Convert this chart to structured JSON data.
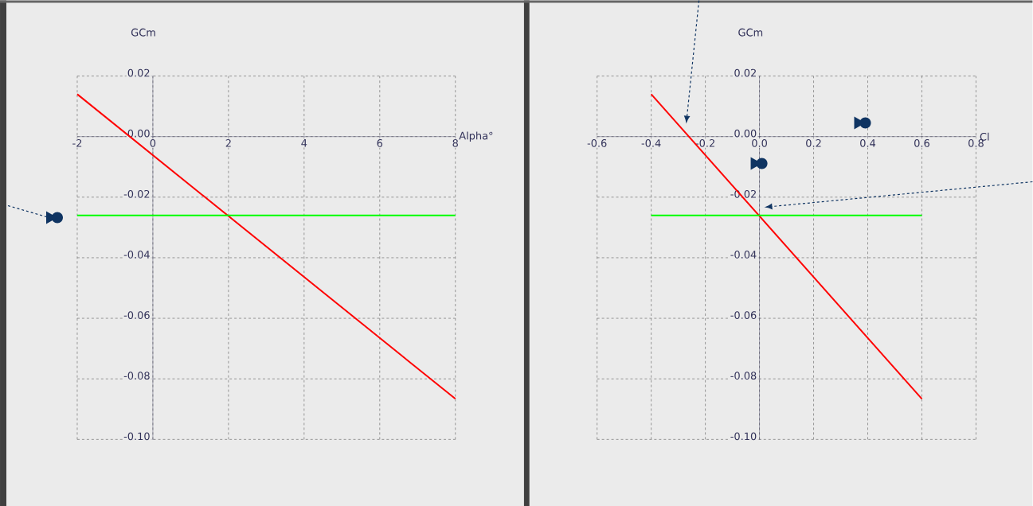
{
  "chart_data": [
    {
      "type": "line",
      "xlabel": "Alpha°",
      "ylabel": "GCm",
      "x": [
        -2,
        8
      ],
      "grid": true,
      "series": [
        {
          "color": "#ff0000",
          "values": [
            0.014,
            -0.0866
          ]
        },
        {
          "color": "#00ff00",
          "values": [
            -0.026,
            -0.026
          ]
        }
      ],
      "xlim": [
        -2,
        8
      ],
      "ylim": [
        -0.1,
        0.02
      ],
      "xticks": [
        -2,
        0,
        2,
        4,
        6,
        8
      ],
      "yticks": [
        {
          "value": 0.02,
          "label": "0.02"
        },
        {
          "value": 0,
          "label": "0.00"
        },
        {
          "value": -0.02,
          "label": "-0.02"
        },
        {
          "value": -0.04,
          "label": "-0.04"
        },
        {
          "value": -0.06,
          "label": "-0.06"
        },
        {
          "value": -0.08,
          "label": "-0.08"
        },
        {
          "value": -0.1,
          "label": "-0.10"
        }
      ]
    },
    {
      "type": "line",
      "xlabel": "Cl",
      "ylabel": "GCm",
      "x": [
        -0.4,
        0.6
      ],
      "grid": true,
      "series": [
        {
          "color": "#ff0000",
          "values": [
            0.014,
            -0.0866
          ]
        },
        {
          "color": "#00ff00",
          "values": [
            -0.026,
            -0.026
          ]
        }
      ],
      "xlim": [
        -0.6,
        0.8
      ],
      "ylim": [
        -0.1,
        0.02
      ],
      "xticks": [
        -0.6,
        -0.4,
        -0.2,
        {
          "value": 0,
          "label": "0.0"
        },
        0.2,
        0.4,
        0.6,
        0.8
      ],
      "yticks": [
        {
          "value": 0.02,
          "label": "0.02"
        },
        {
          "value": 0,
          "label": "0.00"
        },
        {
          "value": -0.02,
          "label": "-0.02"
        },
        {
          "value": -0.04,
          "label": "-0.04"
        },
        {
          "value": -0.06,
          "label": "-0.06"
        },
        {
          "value": -0.08,
          "label": "-0.08"
        },
        {
          "value": -0.1,
          "label": "-0.10"
        }
      ]
    }
  ]
}
